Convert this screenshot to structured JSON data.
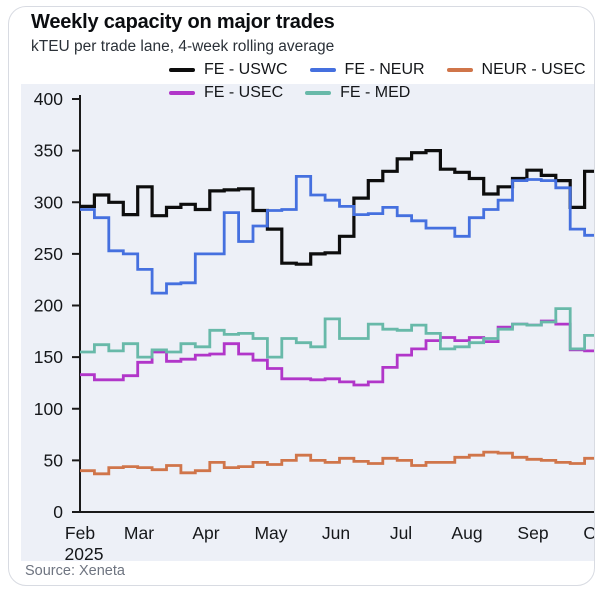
{
  "card": {
    "source": "Source: Xeneta"
  },
  "chart_data": {
    "type": "line",
    "step": true,
    "title": "Weekly capacity on major trades",
    "subtitle": "kTEU per trade lane, 4-week rolling average",
    "xlabel": "",
    "ylabel": "kTEU",
    "ylim": [
      0,
      400
    ],
    "yticks": [
      0,
      50,
      100,
      150,
      200,
      250,
      300,
      350,
      400
    ],
    "grid": false,
    "legend_position": "top",
    "panel_bg": "#edf0f7",
    "axis_color": "#1a1a1a",
    "x_axis": {
      "months": [
        "Feb",
        "Mar",
        "Apr",
        "May",
        "Jun",
        "Jul",
        "Aug",
        "Sep",
        "Oct"
      ],
      "year_label": "2025",
      "frequency": "weekly",
      "range": "Feb 2025 - early Oct 2025"
    },
    "series": [
      {
        "name": "FE - USWC",
        "color": "#0d0d0d",
        "values": [
          296,
          307,
          300,
          288,
          315,
          287,
          295,
          298,
          293,
          311,
          312,
          313,
          292,
          274,
          241,
          240,
          250,
          251,
          267,
          304,
          321,
          330,
          342,
          348,
          350,
          332,
          329,
          323,
          308,
          315,
          323,
          331,
          326,
          321,
          295,
          330
        ]
      },
      {
        "name": "FE - NEUR",
        "color": "#4570df",
        "values": [
          293,
          285,
          253,
          250,
          235,
          212,
          221,
          222,
          250,
          250,
          290,
          262,
          277,
          292,
          293,
          325,
          307,
          302,
          296,
          288,
          289,
          295,
          287,
          282,
          275,
          275,
          267,
          285,
          293,
          302,
          321,
          322,
          321,
          314,
          274,
          268
        ]
      },
      {
        "name": "NEUR - USEC",
        "color": "#d0754a",
        "values": [
          40,
          37,
          43,
          44,
          43,
          41,
          45,
          38,
          40,
          48,
          43,
          44,
          48,
          46,
          50,
          55,
          50,
          48,
          52,
          49,
          47,
          52,
          50,
          45,
          48,
          48,
          53,
          55,
          58,
          57,
          53,
          51,
          50,
          48,
          47,
          52
        ]
      },
      {
        "name": "FE - USEC",
        "color": "#b136c9",
        "values": [
          133,
          128,
          128,
          132,
          145,
          155,
          146,
          148,
          152,
          153,
          163,
          153,
          147,
          139,
          129,
          129,
          128,
          129,
          126,
          123,
          126,
          140,
          152,
          158,
          166,
          169,
          166,
          169,
          165,
          179,
          182,
          181,
          185,
          182,
          157,
          156
        ]
      },
      {
        "name": "FE - MED",
        "color": "#68b9a9",
        "values": [
          155,
          162,
          156,
          163,
          150,
          157,
          155,
          163,
          160,
          176,
          172,
          173,
          168,
          150,
          168,
          164,
          160,
          187,
          168,
          168,
          182,
          177,
          176,
          181,
          173,
          158,
          160,
          164,
          168,
          177,
          182,
          181,
          184,
          197,
          158,
          171
        ]
      }
    ],
    "legend_rows": [
      [
        0,
        1,
        2
      ],
      [
        3,
        4
      ]
    ]
  }
}
